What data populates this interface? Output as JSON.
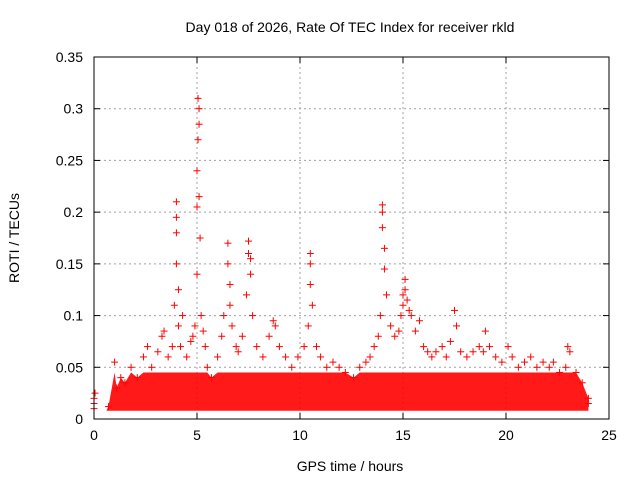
{
  "chart_data": {
    "type": "scatter",
    "title": "Day 018 of 2026, Rate Of TEC Index for receiver rkld",
    "xlabel": "GPS time / hours",
    "ylabel": "ROTI / TECUs",
    "xlim": [
      0,
      25
    ],
    "ylim": [
      0,
      0.35
    ],
    "xticks": [
      "0",
      "5",
      "10",
      "15",
      "20",
      "25"
    ],
    "yticks": [
      "0",
      "0.05",
      "0.1",
      "0.15",
      "0.2",
      "0.25",
      "0.3",
      "0.35"
    ],
    "grid": true,
    "marker": "+",
    "colors": {
      "series": "#ff0000",
      "grid": "#a0a0a0"
    },
    "series": [
      {
        "x": [
          0.0,
          0.0,
          0.0,
          0.05,
          0.7,
          1.0,
          1.1,
          1.3,
          1.5,
          1.8,
          2.1,
          2.4,
          2.6,
          2.8,
          3.1,
          3.3,
          3.4,
          3.6,
          3.8,
          3.9,
          4.0,
          4.0,
          4.0,
          4.0,
          4.1,
          4.1,
          4.2,
          4.3,
          4.5,
          4.7,
          4.8,
          4.9,
          5.0,
          5.0,
          5.0,
          5.05,
          5.05,
          5.1,
          5.1,
          5.1,
          5.15,
          5.2,
          5.3,
          5.4,
          5.5,
          5.7,
          6.0,
          6.2,
          6.3,
          6.5,
          6.5,
          6.6,
          6.6,
          6.7,
          6.9,
          7.0,
          7.2,
          7.4,
          7.5,
          7.5,
          7.6,
          7.6,
          7.7,
          7.9,
          8.2,
          8.5,
          8.7,
          8.8,
          9.0,
          9.3,
          9.6,
          9.9,
          10.2,
          10.4,
          10.5,
          10.5,
          10.5,
          10.6,
          10.8,
          11.0,
          11.3,
          11.6,
          11.9,
          12.2,
          12.6,
          12.9,
          13.2,
          13.4,
          13.6,
          13.8,
          13.9,
          14.0,
          14.0,
          14.0,
          14.1,
          14.1,
          14.2,
          14.4,
          14.6,
          14.8,
          14.9,
          15.0,
          15.0,
          15.1,
          15.1,
          15.2,
          15.3,
          15.4,
          15.6,
          15.8,
          16.0,
          16.2,
          16.4,
          16.6,
          16.9,
          17.1,
          17.3,
          17.5,
          17.6,
          17.8,
          18.1,
          18.4,
          18.7,
          18.9,
          19.0,
          19.2,
          19.5,
          19.8,
          20.1,
          20.3,
          20.6,
          20.9,
          21.2,
          21.5,
          21.8,
          22.1,
          22.3,
          22.6,
          22.9,
          23.0,
          23.1,
          23.4,
          23.7,
          24.0,
          24.0
        ],
        "y": [
          0.01,
          0.015,
          0.02,
          0.025,
          0.012,
          0.055,
          0.03,
          0.04,
          0.035,
          0.05,
          0.04,
          0.06,
          0.07,
          0.05,
          0.065,
          0.08,
          0.085,
          0.06,
          0.07,
          0.11,
          0.21,
          0.195,
          0.18,
          0.15,
          0.125,
          0.09,
          0.07,
          0.1,
          0.06,
          0.075,
          0.08,
          0.09,
          0.14,
          0.205,
          0.24,
          0.27,
          0.31,
          0.3,
          0.285,
          0.215,
          0.175,
          0.1,
          0.085,
          0.07,
          0.05,
          0.04,
          0.06,
          0.08,
          0.1,
          0.17,
          0.15,
          0.13,
          0.11,
          0.09,
          0.07,
          0.065,
          0.08,
          0.12,
          0.16,
          0.172,
          0.155,
          0.14,
          0.1,
          0.07,
          0.06,
          0.08,
          0.095,
          0.09,
          0.07,
          0.06,
          0.05,
          0.06,
          0.07,
          0.09,
          0.16,
          0.15,
          0.13,
          0.11,
          0.07,
          0.06,
          0.05,
          0.055,
          0.05,
          0.045,
          0.04,
          0.05,
          0.055,
          0.06,
          0.07,
          0.08,
          0.1,
          0.207,
          0.2,
          0.185,
          0.165,
          0.145,
          0.12,
          0.09,
          0.08,
          0.085,
          0.1,
          0.11,
          0.12,
          0.135,
          0.125,
          0.115,
          0.105,
          0.1,
          0.085,
          0.095,
          0.07,
          0.065,
          0.06,
          0.065,
          0.07,
          0.06,
          0.075,
          0.105,
          0.09,
          0.065,
          0.06,
          0.065,
          0.07,
          0.065,
          0.085,
          0.07,
          0.06,
          0.055,
          0.07,
          0.06,
          0.05,
          0.055,
          0.06,
          0.05,
          0.055,
          0.05,
          0.055,
          0.045,
          0.05,
          0.07,
          0.065,
          0.045,
          0.035,
          0.02,
          0.015
        ]
      }
    ]
  }
}
